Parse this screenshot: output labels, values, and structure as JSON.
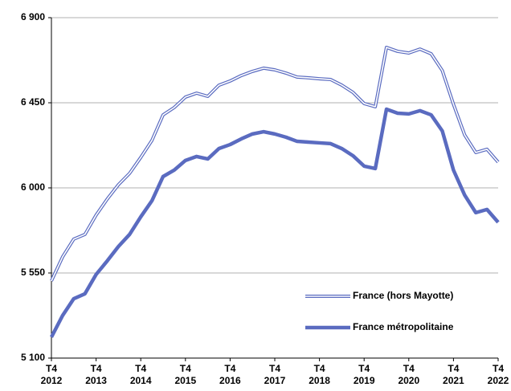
{
  "chart_data": {
    "type": "line",
    "categories": [
      "T4 2012",
      null,
      null,
      null,
      "T4 2013",
      null,
      null,
      null,
      "T4 2014",
      null,
      null,
      null,
      "T4 2015",
      null,
      null,
      null,
      "T4 2016",
      null,
      null,
      null,
      "T4 2017",
      null,
      null,
      null,
      "T4 2018",
      null,
      null,
      null,
      "T4 2019",
      null,
      null,
      null,
      "T4 2020",
      null,
      null,
      null,
      "T4 2021",
      null,
      null,
      null,
      "T4 2022"
    ],
    "series": [
      {
        "name": "France (hors Mayotte)",
        "color": "#5a6bc0",
        "style": "double",
        "values": [
          5508,
          5635,
          5729,
          5754,
          5856,
          5941,
          6017,
          6077,
          6161,
          6251,
          6386,
          6425,
          6480,
          6501,
          6484,
          6543,
          6565,
          6594,
          6616,
          6633,
          6624,
          6607,
          6586,
          6582,
          6577,
          6573,
          6543,
          6505,
          6446,
          6429,
          6743,
          6722,
          6713,
          6734,
          6709,
          6620,
          6442,
          6280,
          6187,
          6204,
          6136
        ]
      },
      {
        "name": "France métropolitaine",
        "color": "#5a6bc0",
        "style": "thick",
        "values": [
          5211,
          5325,
          5414,
          5440,
          5542,
          5614,
          5690,
          5754,
          5847,
          5932,
          6060,
          6094,
          6145,
          6166,
          6153,
          6208,
          6229,
          6259,
          6285,
          6297,
          6285,
          6268,
          6246,
          6242,
          6238,
          6234,
          6208,
          6170,
          6115,
          6102,
          6416,
          6395,
          6391,
          6408,
          6386,
          6301,
          6094,
          5962,
          5869,
          5886,
          5818
        ]
      }
    ],
    "ylim": [
      5100,
      6900
    ],
    "yticks": [
      {
        "value": 5100,
        "label": "5 100"
      },
      {
        "value": 5550,
        "label": "5 550"
      },
      {
        "value": 6000,
        "label": "6 000"
      },
      {
        "value": 6450,
        "label": "6 450"
      },
      {
        "value": 6900,
        "label": "6 900"
      }
    ],
    "grid": true,
    "legend": "lower right"
  }
}
